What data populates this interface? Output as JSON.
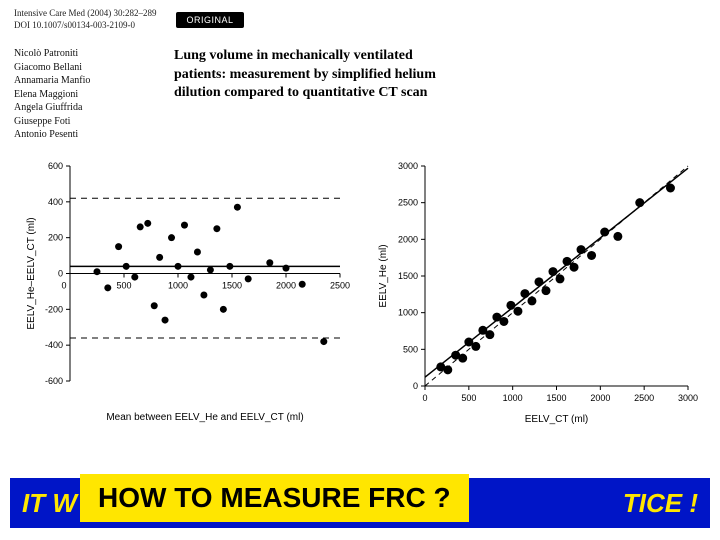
{
  "header": {
    "journal": "Intensive Care Med (2004) 30:282–289",
    "doi": "DOI 10.1007/s00134-003-2109-0",
    "badge": "ORIGINAL",
    "authors": [
      "Nicolò Patroniti",
      "Giacomo Bellani",
      "Annamaria Manfio",
      "Elena Maggioni",
      "Angela Giuffrida",
      "Giuseppe Foti",
      "Antonio Pesenti"
    ],
    "title": "Lung volume in mechanically ventilated patients: measurement by simplified helium dilution compared to quantitative CT scan"
  },
  "bland_altman": {
    "type": "scatter",
    "xlabel": "Mean between EELV_He and EELV_CT (ml)",
    "ylabel": "EELV_He–EELV_CT (ml)",
    "xlim": [
      0,
      2500
    ],
    "xtick_step": 500,
    "ylim": [
      -600,
      600
    ],
    "ytick_step": 200,
    "mean_line": 40,
    "loa_upper": 420,
    "loa_lower": -360,
    "point_color": "#000000",
    "line_color": "#000000",
    "dash_pattern": "6,5",
    "background_color": "#ffffff",
    "marker_size": 3.5,
    "points": [
      [
        250,
        10
      ],
      [
        350,
        -80
      ],
      [
        450,
        150
      ],
      [
        520,
        40
      ],
      [
        600,
        -20
      ],
      [
        650,
        260
      ],
      [
        720,
        280
      ],
      [
        780,
        -180
      ],
      [
        830,
        90
      ],
      [
        880,
        -260
      ],
      [
        940,
        200
      ],
      [
        1000,
        40
      ],
      [
        1060,
        270
      ],
      [
        1120,
        -20
      ],
      [
        1180,
        120
      ],
      [
        1240,
        -120
      ],
      [
        1300,
        20
      ],
      [
        1360,
        250
      ],
      [
        1420,
        -200
      ],
      [
        1480,
        40
      ],
      [
        1550,
        370
      ],
      [
        1650,
        -30
      ],
      [
        1850,
        60
      ],
      [
        2000,
        30
      ],
      [
        2150,
        -60
      ],
      [
        2350,
        -380
      ]
    ]
  },
  "scatter_correlation": {
    "type": "scatter",
    "xlabel": "EELV_CT (ml)",
    "ylabel": "EELV_He (ml)",
    "xlim": [
      0,
      3000
    ],
    "xtick_step": 500,
    "ylim": [
      0,
      3000
    ],
    "ytick_step": 500,
    "point_color": "#000000",
    "marker_size": 4.5,
    "identity_dash": "5,4",
    "fit_intercept": 120,
    "fit_slope": 0.95,
    "points": [
      [
        180,
        260
      ],
      [
        260,
        220
      ],
      [
        350,
        420
      ],
      [
        430,
        380
      ],
      [
        500,
        600
      ],
      [
        580,
        540
      ],
      [
        660,
        760
      ],
      [
        740,
        700
      ],
      [
        820,
        940
      ],
      [
        900,
        880
      ],
      [
        980,
        1100
      ],
      [
        1060,
        1020
      ],
      [
        1140,
        1260
      ],
      [
        1220,
        1160
      ],
      [
        1300,
        1420
      ],
      [
        1380,
        1300
      ],
      [
        1460,
        1560
      ],
      [
        1540,
        1460
      ],
      [
        1620,
        1700
      ],
      [
        1700,
        1620
      ],
      [
        1780,
        1860
      ],
      [
        1900,
        1780
      ],
      [
        2050,
        2100
      ],
      [
        2200,
        2040
      ],
      [
        2450,
        2500
      ],
      [
        2800,
        2700
      ]
    ]
  },
  "banner": {
    "blue_left": "IT W",
    "blue_right": "TICE !",
    "yellow_text": "HOW TO MEASURE FRC ?",
    "blue_bg": "#0015c7",
    "yellow_bg": "#ffe600",
    "yellow_fg": "#000000",
    "blue_fg": "#ffe600"
  }
}
